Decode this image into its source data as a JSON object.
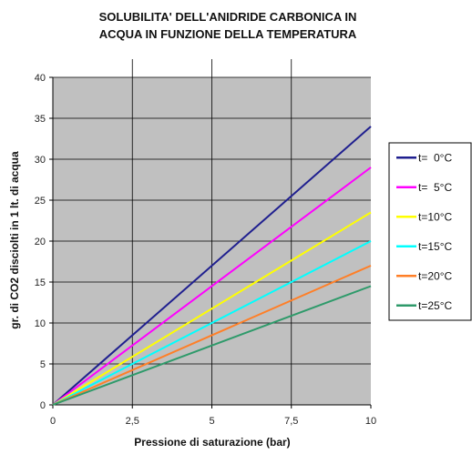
{
  "chart_data": {
    "type": "line",
    "title": "SOLUBILITA' DELL'ANIDRIDE CARBONICA IN ACQUA IN FUNZIONE DELLA TEMPERATURA",
    "title_lines": [
      "SOLUBILITA' DELL'ANIDRIDE CARBONICA IN",
      "ACQUA IN FUNZIONE DELLA TEMPERATURA"
    ],
    "xlabel": "Pressione di saturazione (bar)",
    "ylabel": "gr. di CO2 disciolti in 1 lt. di acqua",
    "xlim": [
      0,
      10
    ],
    "ylim": [
      0,
      40
    ],
    "x_ticks": [
      0,
      2.5,
      5,
      7.5,
      10
    ],
    "x_tick_labels": [
      "0",
      "2,5",
      "5",
      "7,5",
      "10"
    ],
    "y_ticks": [
      0,
      5,
      10,
      15,
      20,
      25,
      30,
      35,
      40
    ],
    "y_tick_labels": [
      "0",
      "5",
      "10",
      "15",
      "20",
      "25",
      "30",
      "35",
      "40"
    ],
    "grid": true,
    "plot_background": "#c0c0c0",
    "legend_position": "right",
    "series": [
      {
        "name": "t=  0°C",
        "color": "#1f1f8f",
        "x": [
          0,
          10
        ],
        "y": [
          0,
          34
        ]
      },
      {
        "name": "t=  5°C",
        "color": "#ff00ff",
        "x": [
          0,
          10
        ],
        "y": [
          0,
          29
        ]
      },
      {
        "name": "t=10°C",
        "color": "#ffff00",
        "x": [
          0,
          10
        ],
        "y": [
          0,
          23.5
        ]
      },
      {
        "name": "t=15°C",
        "color": "#00ffff",
        "x": [
          0,
          10
        ],
        "y": [
          0,
          20
        ]
      },
      {
        "name": "t=20°C",
        "color": "#ff7f27",
        "x": [
          0,
          10
        ],
        "y": [
          0,
          17
        ]
      },
      {
        "name": "t=25°C",
        "color": "#2e9a6a",
        "x": [
          0,
          10
        ],
        "y": [
          0,
          14.5
        ]
      }
    ]
  }
}
